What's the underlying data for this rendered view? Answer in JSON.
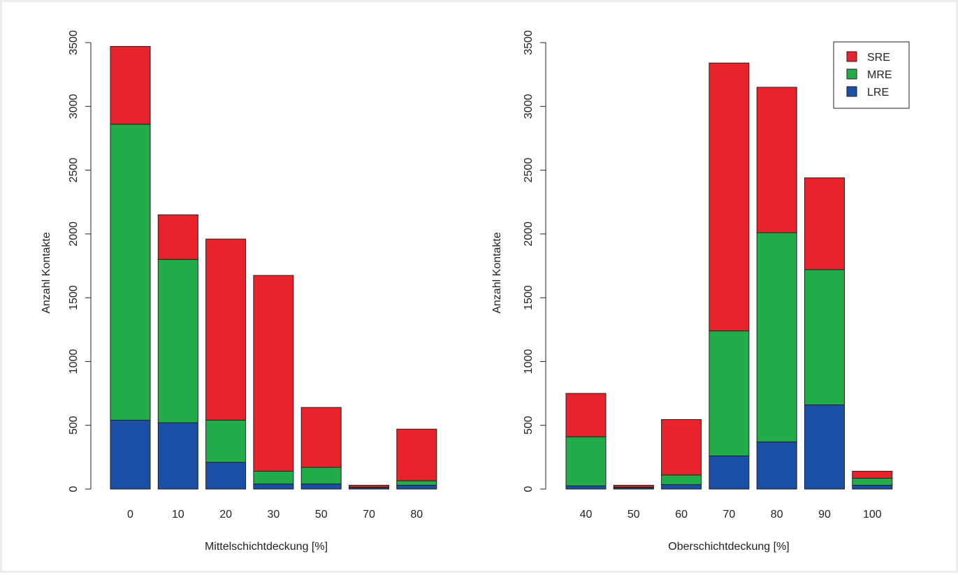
{
  "colors": {
    "SRE": "#e8232b",
    "MRE": "#22ac4a",
    "LRE": "#1b4fa5"
  },
  "chart_data": [
    {
      "type": "bar",
      "stacked": true,
      "xlabel": "Mittelschichtdeckung [%]",
      "ylabel": "Anzahl Kontakte",
      "ylim": [
        0,
        3500
      ],
      "yticks": [
        "0",
        "500",
        "1000",
        "1500",
        "2000",
        "2500",
        "3000",
        "3500"
      ],
      "categories": [
        "0",
        "10",
        "20",
        "30",
        "50",
        "70",
        "80"
      ],
      "series": [
        {
          "name": "LRE",
          "values": [
            540,
            520,
            210,
            40,
            40,
            10,
            30
          ]
        },
        {
          "name": "MRE",
          "values": [
            2320,
            1280,
            330,
            100,
            130,
            5,
            35
          ]
        },
        {
          "name": "SRE",
          "values": [
            610,
            350,
            1420,
            1535,
            470,
            15,
            405
          ]
        }
      ],
      "legend": null
    },
    {
      "type": "bar",
      "stacked": true,
      "xlabel": "Oberschichtdeckung [%]",
      "ylabel": "Anzahl Kontakte",
      "ylim": [
        0,
        3500
      ],
      "yticks": [
        "0",
        "500",
        "1000",
        "1500",
        "2000",
        "2500",
        "3000",
        "3500"
      ],
      "categories": [
        "40",
        "50",
        "60",
        "70",
        "80",
        "90",
        "100"
      ],
      "series": [
        {
          "name": "LRE",
          "values": [
            25,
            10,
            35,
            260,
            370,
            660,
            30
          ]
        },
        {
          "name": "MRE",
          "values": [
            385,
            5,
            75,
            980,
            1640,
            1060,
            55
          ]
        },
        {
          "name": "SRE",
          "values": [
            340,
            15,
            435,
            2100,
            1140,
            720,
            55
          ]
        }
      ],
      "legend": {
        "position": "top-right",
        "entries": [
          "SRE",
          "MRE",
          "LRE"
        ]
      }
    }
  ]
}
